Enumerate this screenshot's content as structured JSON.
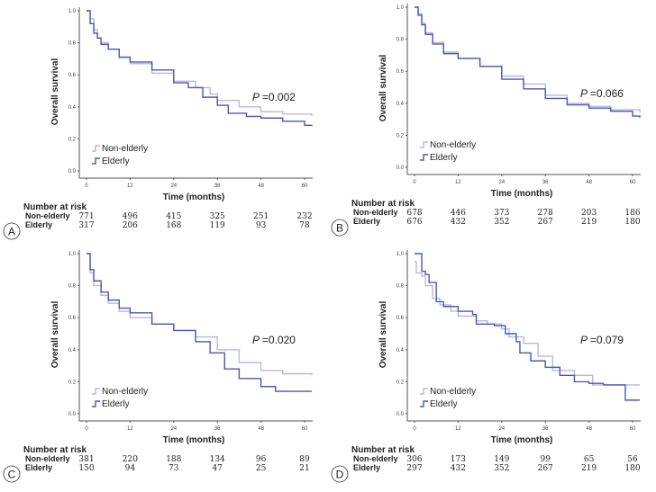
{
  "chart_data": [
    {
      "panel": "A",
      "type": "line",
      "xlabel": "Time (months)",
      "ylabel": "Overall survival",
      "xticks": [
        0,
        12,
        24,
        36,
        48,
        60
      ],
      "yticks": [
        "0.0",
        "0.2",
        "0.4",
        "0.6",
        "0.8",
        "1.0"
      ],
      "xlim": [
        0,
        62
      ],
      "ylim": [
        0,
        1
      ],
      "p_label": "P",
      "p_value": "=0.002",
      "series": [
        {
          "name": "Non-elderly",
          "color": "#b7b7e2",
          "points": [
            [
              0,
              1
            ],
            [
              1,
              0.95
            ],
            [
              2,
              0.88
            ],
            [
              3,
              0.83
            ],
            [
              4,
              0.8
            ],
            [
              6,
              0.76
            ],
            [
              9,
              0.71
            ],
            [
              12,
              0.67
            ],
            [
              18,
              0.61
            ],
            [
              24,
              0.56
            ],
            [
              30,
              0.52
            ],
            [
              34,
              0.48
            ],
            [
              36,
              0.44
            ],
            [
              42,
              0.4
            ],
            [
              48,
              0.37
            ],
            [
              54,
              0.355
            ],
            [
              62,
              0.345
            ]
          ]
        },
        {
          "name": "Elderly",
          "color": "#4a58b6",
          "points": [
            [
              0,
              1
            ],
            [
              1,
              0.92
            ],
            [
              2,
              0.86
            ],
            [
              3,
              0.83
            ],
            [
              4,
              0.79
            ],
            [
              6,
              0.76
            ],
            [
              9,
              0.71
            ],
            [
              12,
              0.68
            ],
            [
              18,
              0.63
            ],
            [
              24,
              0.55
            ],
            [
              28,
              0.52
            ],
            [
              32,
              0.46
            ],
            [
              36,
              0.41
            ],
            [
              39,
              0.36
            ],
            [
              44,
              0.34
            ],
            [
              48,
              0.33
            ],
            [
              54,
              0.31
            ],
            [
              60,
              0.285
            ],
            [
              62,
              0.28
            ]
          ]
        }
      ],
      "risk": {
        "title": "Number at risk",
        "rows": [
          {
            "label": "Non-elderly",
            "values": [
              "771",
              "496",
              "415",
              "325",
              "251",
              "232"
            ]
          },
          {
            "label": "Elderly",
            "values": [
              "317",
              "206",
              "168",
              "119",
              "93",
              "78"
            ]
          }
        ]
      }
    },
    {
      "panel": "B",
      "type": "line",
      "xlabel": "Time (months)",
      "ylabel": "Overall survival",
      "xticks": [
        0,
        12,
        24,
        36,
        48,
        60
      ],
      "yticks": [
        "0.0",
        "0.2",
        "0.4",
        "0.6",
        "0.8",
        "1.0"
      ],
      "xlim": [
        0,
        62
      ],
      "ylim": [
        0,
        1
      ],
      "p_label": "P",
      "p_value": "=0.066",
      "series": [
        {
          "name": "Non-elderly",
          "color": "#b7b7e2",
          "points": [
            [
              0,
              1
            ],
            [
              1,
              0.96
            ],
            [
              2,
              0.9
            ],
            [
              3,
              0.84
            ],
            [
              5,
              0.78
            ],
            [
              8,
              0.72
            ],
            [
              12,
              0.68
            ],
            [
              18,
              0.63
            ],
            [
              24,
              0.57
            ],
            [
              30,
              0.52
            ],
            [
              36,
              0.45
            ],
            [
              42,
              0.4
            ],
            [
              48,
              0.38
            ],
            [
              54,
              0.36
            ],
            [
              62,
              0.34
            ]
          ]
        },
        {
          "name": "Elderly",
          "color": "#4a58b6",
          "points": [
            [
              0,
              1
            ],
            [
              1,
              0.95
            ],
            [
              2,
              0.89
            ],
            [
              3,
              0.83
            ],
            [
              5,
              0.77
            ],
            [
              8,
              0.71
            ],
            [
              12,
              0.68
            ],
            [
              18,
              0.63
            ],
            [
              24,
              0.55
            ],
            [
              30,
              0.49
            ],
            [
              36,
              0.43
            ],
            [
              42,
              0.39
            ],
            [
              48,
              0.37
            ],
            [
              54,
              0.35
            ],
            [
              60,
              0.32
            ],
            [
              62,
              0.31
            ]
          ]
        }
      ],
      "risk": {
        "title": "Number at risk",
        "rows": [
          {
            "label": "Non-elderly",
            "values": [
              "678",
              "446",
              "373",
              "278",
              "203",
              "186"
            ]
          },
          {
            "label": "Elderly",
            "values": [
              "676",
              "432",
              "352",
              "267",
              "219",
              "180"
            ]
          }
        ]
      }
    },
    {
      "panel": "C",
      "type": "line",
      "xlabel": "Time (months)",
      "ylabel": "Overall survival",
      "xticks": [
        0,
        12,
        24,
        36,
        48,
        60
      ],
      "yticks": [
        "0.0",
        "0.2",
        "0.4",
        "0.6",
        "0.8",
        "1.0"
      ],
      "xlim": [
        0,
        62
      ],
      "ylim": [
        0,
        1
      ],
      "p_label": "P",
      "p_value": "=0.020",
      "series": [
        {
          "name": "Non-elderly",
          "color": "#b7b7e2",
          "points": [
            [
              0,
              1
            ],
            [
              1,
              0.88
            ],
            [
              2,
              0.8
            ],
            [
              4,
              0.74
            ],
            [
              6,
              0.69
            ],
            [
              9,
              0.64
            ],
            [
              12,
              0.6
            ],
            [
              18,
              0.56
            ],
            [
              24,
              0.52
            ],
            [
              30,
              0.48
            ],
            [
              36,
              0.4
            ],
            [
              42,
              0.32
            ],
            [
              48,
              0.27
            ],
            [
              54,
              0.25
            ],
            [
              62,
              0.24
            ]
          ]
        },
        {
          "name": "Elderly",
          "color": "#4a58b6",
          "points": [
            [
              0,
              1
            ],
            [
              1,
              0.9
            ],
            [
              2,
              0.83
            ],
            [
              4,
              0.76
            ],
            [
              6,
              0.71
            ],
            [
              9,
              0.66
            ],
            [
              12,
              0.63
            ],
            [
              18,
              0.56
            ],
            [
              24,
              0.52
            ],
            [
              30,
              0.45
            ],
            [
              34,
              0.38
            ],
            [
              38,
              0.28
            ],
            [
              42,
              0.22
            ],
            [
              48,
              0.17
            ],
            [
              52,
              0.14
            ],
            [
              62,
              0.14
            ]
          ]
        }
      ],
      "risk": {
        "title": "Number at risk",
        "rows": [
          {
            "label": "Non-elderly",
            "values": [
              "381",
              "220",
              "188",
              "134",
              "96",
              "89"
            ]
          },
          {
            "label": "Elderly",
            "values": [
              "150",
              "94",
              "73",
              "47",
              "25",
              "21"
            ]
          }
        ]
      }
    },
    {
      "panel": "D",
      "type": "line",
      "xlabel": "Time (months)",
      "ylabel": "Overall survival",
      "xticks": [
        0,
        12,
        24,
        36,
        48,
        60
      ],
      "yticks": [
        "0.0",
        "0.2",
        "0.4",
        "0.6",
        "0.8",
        "1.0"
      ],
      "xlim": [
        0,
        62
      ],
      "ylim": [
        0,
        1
      ],
      "p_label": "P",
      "p_value": "=0.079",
      "series": [
        {
          "name": "Non-elderly",
          "color": "#b7b7e2",
          "points": [
            [
              0,
              0.95
            ],
            [
              0.5,
              0.88
            ],
            [
              2,
              0.86
            ],
            [
              3,
              0.8
            ],
            [
              5,
              0.72
            ],
            [
              7,
              0.68
            ],
            [
              10,
              0.64
            ],
            [
              12,
              0.61
            ],
            [
              17,
              0.58
            ],
            [
              20,
              0.56
            ],
            [
              24,
              0.53
            ],
            [
              26,
              0.48
            ],
            [
              30,
              0.44
            ],
            [
              34,
              0.36
            ],
            [
              38,
              0.27
            ],
            [
              44,
              0.24
            ],
            [
              49,
              0.18
            ],
            [
              62,
              0.18
            ]
          ]
        },
        {
          "name": "Elderly",
          "color": "#4a58b6",
          "points": [
            [
              0,
              1
            ],
            [
              2,
              0.89
            ],
            [
              3,
              0.87
            ],
            [
              4,
              0.82
            ],
            [
              6,
              0.7
            ],
            [
              8,
              0.67
            ],
            [
              12,
              0.64
            ],
            [
              16,
              0.62
            ],
            [
              17,
              0.56
            ],
            [
              22,
              0.55
            ],
            [
              25,
              0.5
            ],
            [
              28,
              0.45
            ],
            [
              29,
              0.38
            ],
            [
              32,
              0.33
            ],
            [
              36,
              0.29
            ],
            [
              40,
              0.24
            ],
            [
              44,
              0.2
            ],
            [
              48,
              0.19
            ],
            [
              52,
              0.18
            ],
            [
              58,
              0.18
            ],
            [
              58,
              0.085
            ],
            [
              62,
              0.085
            ]
          ]
        }
      ],
      "risk": {
        "title": "Number at risk",
        "rows": [
          {
            "label": "Non-elderly",
            "values": [
              "306",
              "173",
              "149",
              "99",
              "65",
              "56"
            ]
          },
          {
            "label": "Elderly",
            "values": [
              "297",
              "432",
              "352",
              "267",
              "219",
              "180"
            ]
          }
        ]
      }
    }
  ]
}
